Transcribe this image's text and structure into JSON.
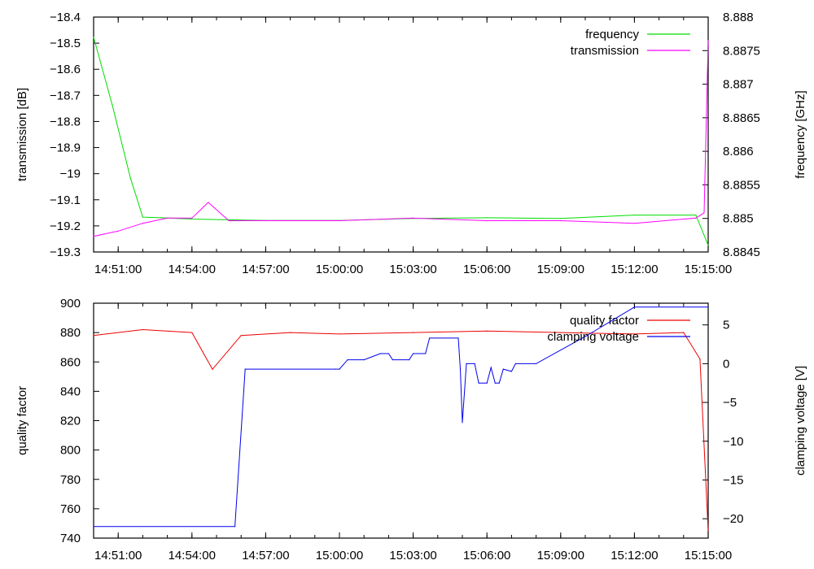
{
  "chart_data": [
    {
      "type": "line",
      "title": "",
      "xlabel": "",
      "ylabel": "transmission [dB]",
      "y2label": "frequency [GHz]",
      "xlim": [
        "14:50:00",
        "15:15:00"
      ],
      "ylim": [
        -19.3,
        -18.4
      ],
      "y2lim": [
        8.8845,
        8.888
      ],
      "grid": false,
      "legend": "top-right",
      "x_ticks": [
        "14:51:00",
        "14:54:00",
        "14:57:00",
        "15:00:00",
        "15:03:00",
        "15:06:00",
        "15:09:00",
        "15:12:00",
        "15:15:00"
      ],
      "y_ticks": [
        "-19.3",
        "-19.2",
        "-19.1",
        "-19",
        "-18.9",
        "-18.8",
        "-18.7",
        "-18.6",
        "-18.5",
        "-18.4"
      ],
      "y2_ticks": [
        "8.8845",
        "8.885",
        "8.8855",
        "8.886",
        "8.8865",
        "8.887",
        "8.8875",
        "8.888"
      ],
      "series": [
        {
          "name": "frequency",
          "axis": "y2",
          "color": "#00dd00",
          "points": [
            [
              "14:50:00",
              8.8877
            ],
            [
              "14:50:45",
              8.8867
            ],
            [
              "14:51:30",
              8.8856
            ],
            [
              "14:52:00",
              8.88502
            ],
            [
              "14:52:45",
              8.88501
            ],
            [
              "14:54:00",
              8.88499
            ],
            [
              "14:57:00",
              8.88497
            ],
            [
              "15:00:00",
              8.88497
            ],
            [
              "15:03:00",
              8.885
            ],
            [
              "15:06:00",
              8.88501
            ],
            [
              "15:09:00",
              8.885
            ],
            [
              "15:12:00",
              8.88505
            ],
            [
              "15:14:30",
              8.88505
            ],
            [
              "15:15:00",
              8.8846
            ]
          ]
        },
        {
          "name": "transmission",
          "axis": "y",
          "color": "#ff00ff",
          "points": [
            [
              "14:50:00",
              -19.24
            ],
            [
              "14:51:00",
              -19.22
            ],
            [
              "14:52:00",
              -19.19
            ],
            [
              "14:53:00",
              -19.17
            ],
            [
              "14:54:00",
              -19.17
            ],
            [
              "14:54:40",
              -19.11
            ],
            [
              "14:55:30",
              -19.18
            ],
            [
              "14:57:00",
              -19.18
            ],
            [
              "15:00:00",
              -19.18
            ],
            [
              "15:03:00",
              -19.17
            ],
            [
              "15:06:00",
              -19.18
            ],
            [
              "15:09:00",
              -19.18
            ],
            [
              "15:12:00",
              -19.19
            ],
            [
              "15:14:30",
              -19.17
            ],
            [
              "15:14:50",
              -19.15
            ],
            [
              "15:15:00",
              -18.49
            ]
          ]
        }
      ]
    },
    {
      "type": "line",
      "title": "",
      "xlabel": "",
      "ylabel": "quality factor",
      "y2label": "clamping voltage [V]",
      "xlim": [
        "14:50:00",
        "15:15:00"
      ],
      "ylim": [
        740,
        900
      ],
      "y2lim": [
        -22.5,
        7.8
      ],
      "grid": false,
      "legend": "top-right",
      "x_ticks": [
        "14:51:00",
        "14:54:00",
        "14:57:00",
        "15:00:00",
        "15:03:00",
        "15:06:00",
        "15:09:00",
        "15:12:00",
        "15:15:00"
      ],
      "y_ticks": [
        "740",
        "760",
        "780",
        "800",
        "820",
        "840",
        "860",
        "880",
        "900"
      ],
      "y2_ticks": [
        "-20",
        "-15",
        "-10",
        "-5",
        "0",
        "5"
      ],
      "series": [
        {
          "name": "quality factor",
          "axis": "y",
          "color": "#ee0000",
          "points": [
            [
              "14:50:00",
              878
            ],
            [
              "14:52:00",
              882
            ],
            [
              "14:54:00",
              880
            ],
            [
              "14:54:50",
              855
            ],
            [
              "14:56:00",
              878
            ],
            [
              "14:58:00",
              880
            ],
            [
              "15:00:00",
              879
            ],
            [
              "15:03:00",
              880
            ],
            [
              "15:06:00",
              881
            ],
            [
              "15:09:00",
              880
            ],
            [
              "15:12:00",
              879
            ],
            [
              "15:14:00",
              880
            ],
            [
              "15:14:40",
              862
            ],
            [
              "15:15:00",
              745
            ]
          ]
        },
        {
          "name": "clamping voltage",
          "axis": "y2",
          "color": "#0000ee",
          "points": [
            [
              "14:50:00",
              -21
            ],
            [
              "14:55:45",
              -21
            ],
            [
              "14:56:10",
              -0.7
            ],
            [
              "14:59:50",
              -0.7
            ],
            [
              "15:00:00",
              -0.7
            ],
            [
              "15:00:20",
              0.5
            ],
            [
              "15:01:00",
              0.5
            ],
            [
              "15:01:40",
              1.3
            ],
            [
              "15:02:00",
              1.3
            ],
            [
              "15:02:10",
              0.5
            ],
            [
              "15:02:50",
              0.5
            ],
            [
              "15:03:00",
              1.3
            ],
            [
              "15:03:30",
              1.3
            ],
            [
              "15:03:40",
              3.3
            ],
            [
              "15:04:50",
              3.3
            ],
            [
              "15:04:55",
              -0.7
            ],
            [
              "15:05:00",
              -7.6
            ],
            [
              "15:05:10",
              0
            ],
            [
              "15:05:30",
              0
            ],
            [
              "15:05:40",
              -2.5
            ],
            [
              "15:06:00",
              -2.5
            ],
            [
              "15:06:10",
              -0.5
            ],
            [
              "15:06:20",
              -2.5
            ],
            [
              "15:06:30",
              -2.5
            ],
            [
              "15:06:40",
              -0.7
            ],
            [
              "15:07:00",
              -1.0
            ],
            [
              "15:07:10",
              0
            ],
            [
              "15:08:00",
              0
            ],
            [
              "15:10:00",
              3.5
            ],
            [
              "15:12:00",
              7.3
            ],
            [
              "15:15:00",
              7.3
            ]
          ]
        }
      ]
    }
  ]
}
